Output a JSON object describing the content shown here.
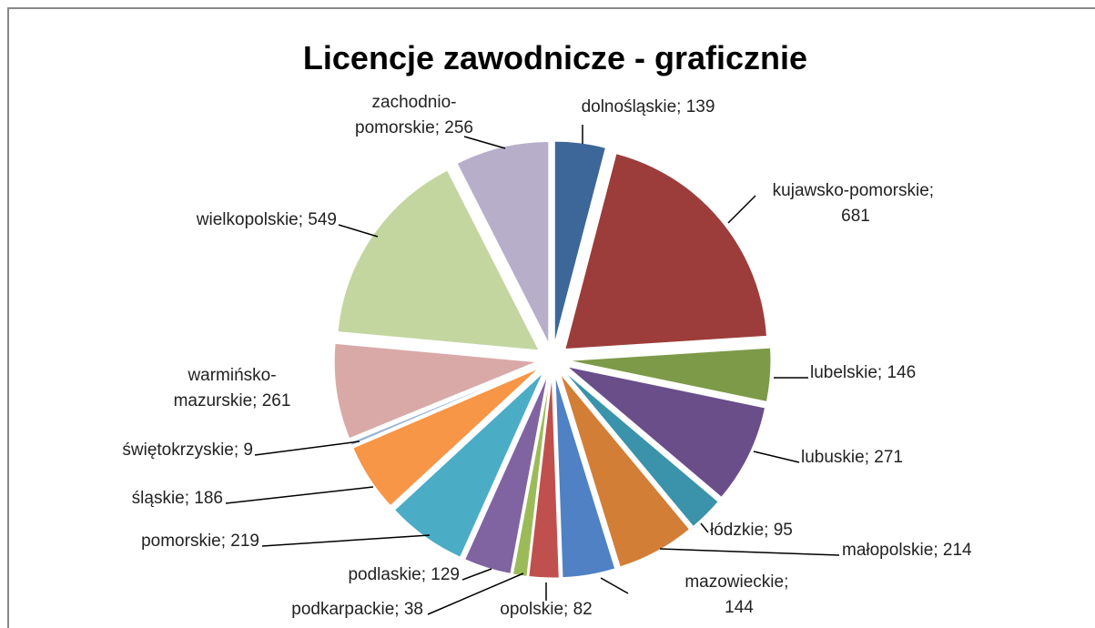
{
  "chart_data": {
    "type": "pie",
    "title": "Licencje zawodnicze - graficznie",
    "values": [
      139,
      681,
      146,
      271,
      95,
      214,
      144,
      82,
      38,
      129,
      219,
      186,
      9,
      261,
      549,
      256
    ],
    "value_labels": [
      "dolnośląskie; 139",
      "kujawsko-pomorskie; 681",
      "lubelskie; 146",
      "lubuskie; 271",
      "łódzkie; 95",
      "małopolskie; 214",
      "mazowieckie; 144",
      "opolskie; 82",
      "podkarpackie; 38",
      "podlaskie; 129",
      "pomorskie; 219",
      "śląskie; 186",
      "świętokrzyskie; 9",
      "warmińsko-mazurskie; 261",
      "wielkopolskie; 549",
      "zachodnio-pomorskie; 256"
    ],
    "colors": [
      "#3d6799",
      "#9c3d3b",
      "#7d9a48",
      "#6a4e8a",
      "#3a93aa",
      "#d27e37",
      "#4f81c4",
      "#c0504d",
      "#9bbb59",
      "#8064a2",
      "#4bacc6",
      "#f79646",
      "#95b3d7",
      "#d9a9a8",
      "#c4d6a0",
      "#b7afc9"
    ]
  }
}
